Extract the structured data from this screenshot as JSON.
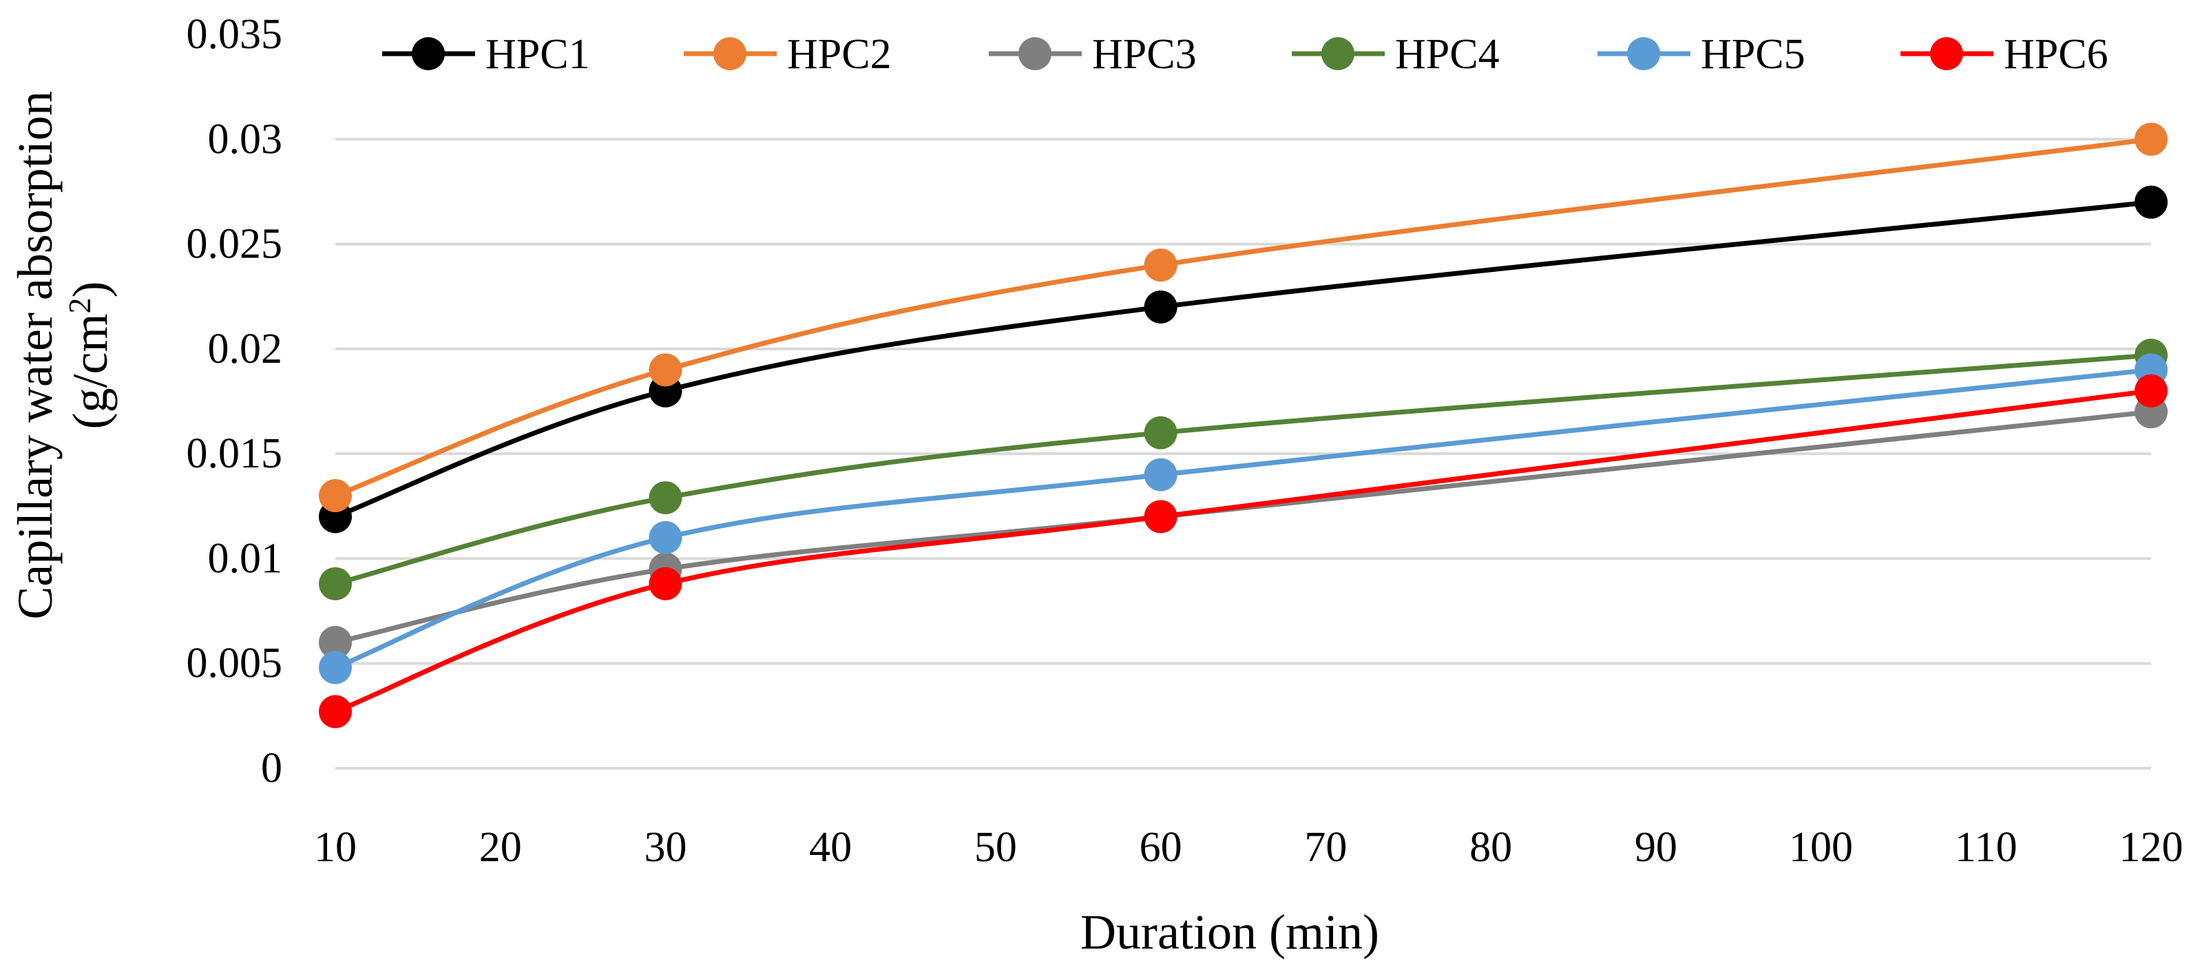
{
  "chart_data": {
    "type": "line",
    "title": "",
    "xlabel": "Duration (min)",
    "ylabel_line1": "Capillary water absorption",
    "ylabel_line2": "(g/cm",
    "ylabel_sup": "2",
    "ylabel_close": ")",
    "xlim": [
      10,
      120
    ],
    "ylim": [
      0,
      0.035
    ],
    "x_ticks": [
      10,
      20,
      30,
      40,
      50,
      60,
      70,
      80,
      90,
      100,
      110,
      120
    ],
    "x_tick_labels": [
      "10",
      "20",
      "30",
      "40",
      "50",
      "60",
      "70",
      "80",
      "90",
      "100",
      "110",
      "120"
    ],
    "y_ticks": [
      0,
      0.005,
      0.01,
      0.015,
      0.02,
      0.025,
      0.03,
      0.035
    ],
    "y_tick_labels": [
      "0",
      "0.005",
      "0.01",
      "0.015",
      "0.02",
      "0.025",
      "0.03",
      "0.035"
    ],
    "grid": "horizontal",
    "legend_position": "top",
    "x": [
      10,
      30,
      60,
      120
    ],
    "series": [
      {
        "name": "HPC1",
        "color": "#000000",
        "values": [
          0.012,
          0.018,
          0.022,
          0.027
        ]
      },
      {
        "name": "HPC2",
        "color": "#ED7D31",
        "values": [
          0.013,
          0.019,
          0.024,
          0.03
        ]
      },
      {
        "name": "HPC3",
        "color": "#7F7F7F",
        "values": [
          0.006,
          0.0095,
          0.012,
          0.017
        ]
      },
      {
        "name": "HPC4",
        "color": "#548235",
        "values": [
          0.0088,
          0.0129,
          0.016,
          0.0197
        ]
      },
      {
        "name": "HPC5",
        "color": "#5B9BD5",
        "values": [
          0.0048,
          0.011,
          0.014,
          0.019
        ]
      },
      {
        "name": "HPC6",
        "color": "#FF0000",
        "values": [
          0.0027,
          0.0088,
          0.012,
          0.018
        ]
      }
    ]
  }
}
